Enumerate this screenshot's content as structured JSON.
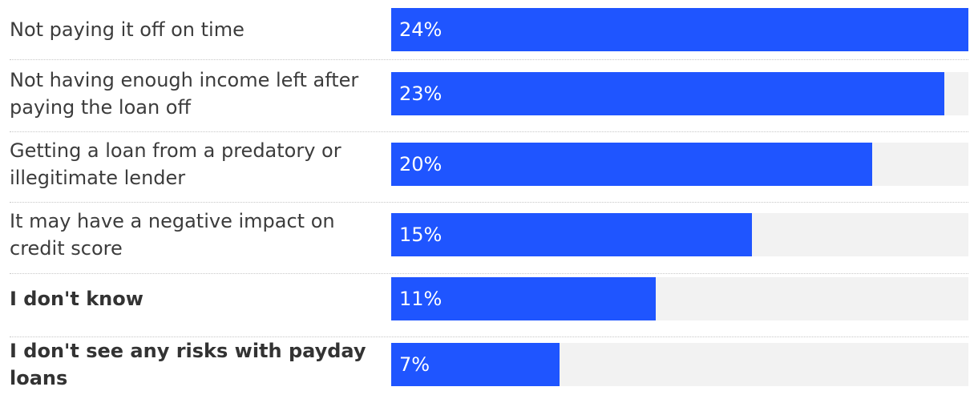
{
  "chart_data": {
    "type": "bar",
    "orientation": "horizontal",
    "categories": [
      "Not paying it off on time",
      "Not having enough income left after paying the loan off",
      "Getting a loan from a predatory or illegitimate lender",
      "It may have a negative impact on credit score",
      "I don't know",
      "I don't see any risks with payday loans"
    ],
    "values": [
      24,
      23,
      20,
      15,
      11,
      7
    ],
    "value_labels": [
      "24%",
      "23%",
      "20%",
      "15%",
      "11%",
      "7%"
    ],
    "bold_categories": [
      "I don't know",
      "I don't see any risks with payday loans"
    ],
    "xlim": [
      0,
      24
    ],
    "unit": "%",
    "title": "",
    "xlabel": "",
    "ylabel": "",
    "grid": false,
    "legend": "none",
    "colors": {
      "bar": "#1f55ff",
      "track": "#f2f2f2",
      "value_text": "#ffffff",
      "label_text": "#3c3c3c",
      "divider": "#c8c8c8"
    }
  }
}
